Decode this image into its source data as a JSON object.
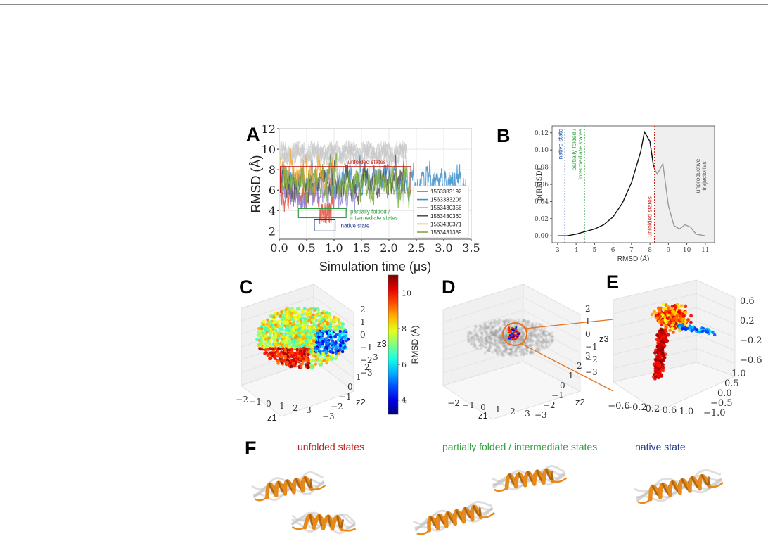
{
  "panel_labels": {
    "A": "A",
    "B": "B",
    "C": "C",
    "D": "D",
    "E": "E",
    "F": "F"
  },
  "chart_data": [
    {
      "panel": "A",
      "type": "line",
      "xlabel": "Simulation time (μs)",
      "ylabel": "RMSD (Å)",
      "xlim": [
        0.0,
        3.5
      ],
      "ylim": [
        1.2,
        12
      ],
      "xticks": [
        "0.0",
        "0.5",
        "1.0",
        "1.5",
        "2.0",
        "2.5",
        "3.0",
        "3.5"
      ],
      "yticks": [
        "2",
        "4",
        "6",
        "8",
        "10",
        "12"
      ],
      "grid": true,
      "legend_position": "lower-right",
      "series": [
        {
          "name": "1563383192",
          "color": "#e24b3b",
          "t_end": 1.0,
          "mean": 5.5
        },
        {
          "name": "1563383206",
          "color": "#3d8ec9",
          "t_end": 3.4,
          "mean": 6.9
        },
        {
          "name": "1563430356",
          "color": "#8e82d6",
          "t_end": 1.4,
          "mean": 5.7
        },
        {
          "name": "1563430360",
          "color": "#555555",
          "t_end": 2.3,
          "mean": 6.8
        },
        {
          "name": "1563430371",
          "color": "#f0aa3a",
          "t_end": 1.0,
          "mean": 7.7
        },
        {
          "name": "1563431389",
          "color": "#7dad3a",
          "t_end": 2.4,
          "mean": 6.6
        }
      ],
      "annotations": [
        {
          "text": "unfolded states",
          "color": "#c0241c",
          "x0": 0.02,
          "x1": 2.4,
          "y0": 5.7,
          "y1": 8.3
        },
        {
          "text": "partially folded /\nintermediate states",
          "color": "#2ea13d",
          "x0": 0.35,
          "x1": 1.22,
          "y0": 3.3,
          "y1": 4.2
        },
        {
          "text": "native state",
          "color": "#1f3a8c",
          "x0": 0.64,
          "x1": 1.02,
          "y0": 2.0,
          "y1": 3.1
        }
      ]
    },
    {
      "panel": "B",
      "type": "line",
      "xlabel": "RMSD (Å)",
      "ylabel": "p(RMSD)",
      "xlim": [
        2.7,
        11.5
      ],
      "ylim": [
        -0.008,
        0.128
      ],
      "xticks": [
        "3",
        "4",
        "5",
        "6",
        "7",
        "8",
        "9",
        "10",
        "11"
      ],
      "yticks": [
        "0.00",
        "0.02",
        "0.04",
        "0.06",
        "0.08",
        "0.10",
        "0.12"
      ],
      "grid": false,
      "x": [
        3.0,
        3.5,
        4.0,
        4.5,
        5.0,
        5.5,
        6.0,
        6.5,
        7.0,
        7.5,
        7.7,
        8.0,
        8.2,
        8.4,
        8.7,
        9.0,
        9.3,
        9.6,
        9.9,
        10.2,
        10.5,
        11.0
      ],
      "y": [
        0.0,
        0.0,
        0.002,
        0.005,
        0.008,
        0.013,
        0.022,
        0.038,
        0.062,
        0.098,
        0.121,
        0.11,
        0.08,
        0.072,
        0.084,
        0.035,
        0.012,
        0.008,
        0.013,
        0.01,
        0.002,
        0.0
      ],
      "vlines": [
        {
          "x": 3.4,
          "label": "native state",
          "color": "#1f4fa8"
        },
        {
          "x": 4.45,
          "label": "partially folded /\nintermediate states",
          "color": "#2ea13d"
        },
        {
          "x": 8.25,
          "label": "unfolded states",
          "color": "#c0241c"
        }
      ],
      "shaded_region": {
        "x0": 8.25,
        "x1": 11.5,
        "label": "unproductive\ntrajectories"
      }
    },
    {
      "panel": "C",
      "type": "scatter",
      "xlabel": "z1",
      "ylabel": "z2",
      "zlabel": "z3",
      "xticks": [
        "−2",
        "−1",
        "0",
        "1",
        "2",
        "3"
      ],
      "yticks": [
        "−3",
        "−2",
        "−1",
        "0",
        "1",
        "2",
        "3"
      ],
      "zticks": [
        "2",
        "1",
        "0",
        "−1",
        "−2",
        "−3"
      ],
      "colorbar": {
        "label": "RMSD (Å)",
        "ticks": [
          "4",
          "6",
          "8",
          "10"
        ],
        "min": 3.2,
        "max": 11
      }
    },
    {
      "panel": "D",
      "type": "scatter",
      "xlabel": "z1",
      "ylabel": "z2",
      "zlabel": "z3",
      "xticks": [
        "−2",
        "−1",
        "0",
        "1",
        "2",
        "3"
      ],
      "yticks": [
        "−3",
        "−2",
        "−1",
        "0",
        "1",
        "2",
        "3"
      ],
      "zticks": [
        "2",
        "1",
        "0",
        "−1",
        "−2",
        "−3"
      ]
    },
    {
      "panel": "E",
      "type": "scatter",
      "xlabel": "",
      "ylabel": "",
      "zlabel": "z3",
      "xticks": [
        "−0.6",
        "−0.2",
        "0.2",
        "0.6",
        "1.0"
      ],
      "yticks": [
        "−1.0",
        "−0.5",
        "0.0",
        "0.5",
        "1.0"
      ],
      "zticks": [
        "0.6",
        "0.2",
        "−0.2",
        "−0.6"
      ]
    }
  ],
  "panel_F": {
    "states": [
      {
        "label": "unfolded states",
        "color": "#c0241c"
      },
      {
        "label": "partially folded / intermediate states",
        "color": "#2ea13d"
      },
      {
        "label": "native state",
        "color": "#1f3a8c"
      }
    ]
  }
}
